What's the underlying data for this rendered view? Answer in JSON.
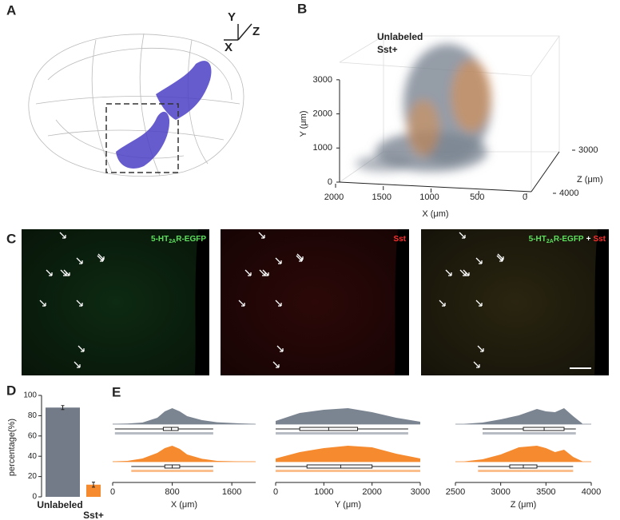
{
  "panel_labels": [
    "A",
    "B",
    "C",
    "D",
    "E"
  ],
  "panel_a": {
    "axis_labels": [
      "Y",
      "Z",
      "X"
    ]
  },
  "panel_c": {
    "images": [
      {
        "label_parts": [
          "5-HT",
          "2A",
          "R-EGFP"
        ]
      },
      {
        "label_parts": [
          "Sst"
        ]
      },
      {
        "label_parts": [
          "5-HT",
          "2A",
          "R-EGFP",
          "+",
          "Sst"
        ]
      }
    ]
  },
  "chart_data": [
    {
      "type": "scatter3d",
      "xlabel": "X (μm)",
      "ylabel": "Y (μm)",
      "zlabel": "Z (μm)",
      "xlim": [
        2000,
        0
      ],
      "xticks": [
        2000,
        1500,
        1000,
        500,
        0
      ],
      "ylim": [
        0,
        3500
      ],
      "yticks": [
        0,
        1000,
        2000,
        3000
      ],
      "zlim": [
        2600,
        4100
      ],
      "zticks": [
        3000,
        4000
      ],
      "series": [
        {
          "name": "Unlabeled",
          "color": "#7b8491"
        },
        {
          "name": "Sst+",
          "color": "#f68a2e"
        }
      ]
    },
    {
      "type": "bar",
      "ylabel": "percentage(%)",
      "categories": [
        "Unlabeled",
        "Sst+"
      ],
      "values": [
        88,
        12
      ],
      "errors": [
        2,
        2.5
      ],
      "colors": [
        "#737b88",
        "#f68a2e"
      ],
      "ylim": [
        0,
        100
      ],
      "yticks": [
        0,
        20,
        40,
        60,
        80,
        100
      ]
    },
    {
      "type": "violin",
      "xlabel": "X (μm)",
      "xlim": [
        0,
        1920
      ],
      "xticks": [
        0,
        800,
        1600
      ],
      "series": [
        {
          "name": "Unlabeled",
          "color": "#7b8491",
          "density_x": [
            0,
            200,
            400,
            600,
            700,
            800,
            900,
            1000,
            1200,
            1400,
            1700,
            1900
          ],
          "density": [
            0.02,
            0.04,
            0.1,
            0.4,
            0.8,
            1,
            0.8,
            0.5,
            0.25,
            0.12,
            0.05,
            0.02
          ],
          "box": [
            30,
            680,
            790,
            880,
            1350
          ]
        },
        {
          "name": "Sst+",
          "color": "#f68a2e",
          "density_x": [
            0,
            200,
            400,
            600,
            700,
            800,
            900,
            1000,
            1200,
            1400,
            1700,
            1900
          ],
          "density": [
            0.02,
            0.05,
            0.2,
            0.55,
            0.85,
            1,
            0.8,
            0.45,
            0.18,
            0.05,
            0.02,
            0.01
          ],
          "box": [
            250,
            700,
            800,
            900,
            1350
          ]
        }
      ]
    },
    {
      "type": "violin",
      "xlabel": "Y (μm)",
      "xlim": [
        0,
        3000
      ],
      "xticks": [
        0,
        1000,
        2000,
        3000
      ],
      "series": [
        {
          "name": "Unlabeled",
          "color": "#7b8491",
          "density_x": [
            0,
            500,
            1000,
            1500,
            2000,
            2500,
            3000
          ],
          "density": [
            0.2,
            0.7,
            0.9,
            1,
            0.75,
            0.4,
            0.15
          ],
          "box": [
            0,
            500,
            1100,
            1700,
            2750
          ]
        },
        {
          "name": "Sst+",
          "color": "#f68a2e",
          "density_x": [
            0,
            500,
            1000,
            1500,
            2000,
            2500,
            3000
          ],
          "density": [
            0.2,
            0.6,
            0.85,
            1,
            0.9,
            0.5,
            0.2
          ],
          "box": [
            0,
            650,
            1350,
            2000,
            3000
          ]
        }
      ]
    },
    {
      "type": "violin",
      "xlabel": "Z (μm)",
      "xlim": [
        2500,
        4000
      ],
      "xticks": [
        2500,
        3000,
        3500,
        4000
      ],
      "series": [
        {
          "name": "Unlabeled",
          "color": "#7b8491",
          "density_x": [
            2600,
            2800,
            3000,
            3200,
            3400,
            3500,
            3600,
            3700,
            3800,
            3900
          ],
          "density": [
            0.02,
            0.1,
            0.3,
            0.55,
            0.95,
            0.8,
            0.75,
            1,
            0.5,
            0.05
          ],
          "box": [
            2800,
            3250,
            3480,
            3700,
            3830
          ]
        },
        {
          "name": "Sst+",
          "color": "#f68a2e",
          "density_x": [
            2600,
            2800,
            3000,
            3200,
            3400,
            3500,
            3600,
            3700,
            3800,
            3900
          ],
          "density": [
            0.02,
            0.15,
            0.45,
            0.9,
            1,
            0.85,
            0.6,
            0.75,
            0.3,
            0.03
          ],
          "box": [
            2750,
            3100,
            3250,
            3400,
            3800
          ]
        }
      ]
    }
  ]
}
